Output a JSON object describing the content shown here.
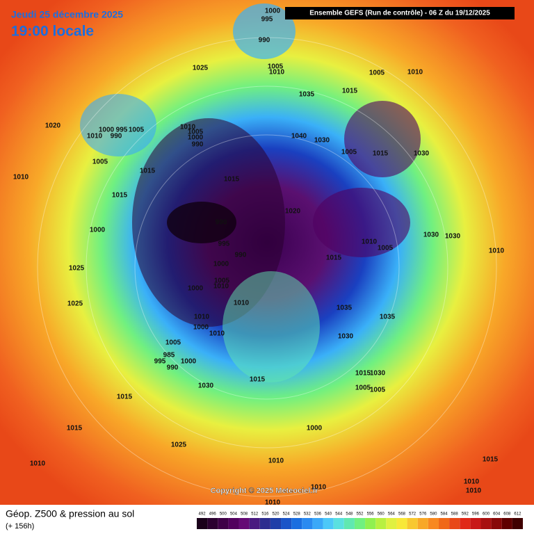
{
  "header": {
    "date": "Jeudi 25 décembre 2025",
    "time": "19:00 locale",
    "model": "Ensemble GEFS  (Run de contrôle)  -  06 Z du 19/12/2025"
  },
  "copyright": "Copyright © 2025 Meteociel.fr",
  "legend": {
    "title": "Géop. Z500 & pression au sol",
    "lead": "(+ 156h)",
    "ticks": [
      492,
      496,
      500,
      504,
      508,
      512,
      516,
      520,
      524,
      528,
      532,
      536,
      540,
      544,
      548,
      552,
      556,
      560,
      564,
      568,
      572,
      576,
      580,
      584,
      588,
      592,
      596,
      600,
      604,
      608,
      612
    ],
    "colors": [
      "#1a001a",
      "#2c0030",
      "#3f0047",
      "#52005e",
      "#650a75",
      "#4a1a80",
      "#2d2d8f",
      "#1f3fa8",
      "#1a55c8",
      "#1a6ee0",
      "#2a8af0",
      "#3aa8f8",
      "#4cc8f8",
      "#5ae0e0",
      "#60e8b0",
      "#70f080",
      "#90f050",
      "#b8f040",
      "#e0f040",
      "#f8e838",
      "#f8c830",
      "#f8a828",
      "#f88820",
      "#f06818",
      "#e84818",
      "#e02818",
      "#c81818",
      "#a81010",
      "#880808",
      "#600000",
      "#400000"
    ]
  },
  "isobar_labels": [
    1000,
    995,
    990,
    1025,
    1005,
    1010,
    1005,
    1010,
    1035,
    1015,
    1020,
    1000,
    995,
    1005,
    1010,
    990,
    1010,
    1005,
    1000,
    990,
    1040,
    1030,
    1005,
    1015,
    1030,
    1015,
    1005,
    1015,
    1015,
    1010,
    990,
    995,
    990,
    1020,
    1000,
    1030,
    1010,
    1005,
    1030,
    1000,
    1000,
    1015,
    1005,
    1010,
    1010,
    1025,
    1035,
    1035,
    1010,
    1030,
    1025,
    1010,
    1000,
    1005,
    1010,
    985,
    995,
    990,
    1000,
    1030,
    1015,
    1015,
    1030,
    1015,
    1005,
    1005,
    1000,
    1025,
    1015,
    1010,
    1010,
    1010,
    1010,
    1015,
    1010,
    1010
  ]
}
